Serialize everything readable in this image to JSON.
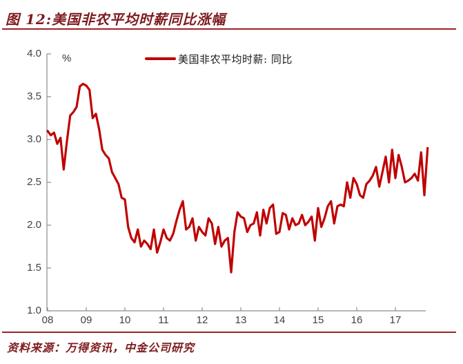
{
  "title": "图 12:美国非农平均时薪同比涨幅",
  "source": "资料来源：万得资讯，中金公司研究",
  "legend": {
    "label": "美国非农平均时薪: 同比"
  },
  "colors": {
    "line": "#C00000",
    "accent_text": "#7E1A1D",
    "divider": "#9E2124",
    "axis": "#8C8C8C",
    "tick_label": "#404040"
  },
  "chart_data": {
    "type": "line",
    "title": "图 12:美国非农平均时薪同比涨幅",
    "ylabel": "%",
    "ylim": [
      1.0,
      4.0
    ],
    "y_tick_step": 0.5,
    "y_tick_labels": [
      "4.0",
      "3.5",
      "3.0",
      "2.5",
      "2.0",
      "1.5",
      "1.0"
    ],
    "x_tick_labels": [
      "08",
      "09",
      "10",
      "11",
      "12",
      "13",
      "14",
      "15",
      "16",
      "17"
    ],
    "grid": false,
    "legend_position": "top-center",
    "series": [
      {
        "name": "美国非农平均时薪: 同比",
        "unit": "%",
        "frequency": "monthly",
        "start": "2008-01",
        "end": "2017-11",
        "values": [
          3.1,
          3.05,
          3.08,
          2.95,
          3.02,
          2.65,
          2.98,
          3.28,
          3.32,
          3.38,
          3.62,
          3.65,
          3.63,
          3.58,
          3.25,
          3.3,
          3.12,
          2.88,
          2.82,
          2.78,
          2.62,
          2.55,
          2.48,
          2.32,
          2.3,
          1.98,
          1.85,
          1.8,
          1.95,
          1.75,
          1.82,
          1.78,
          1.72,
          1.95,
          1.68,
          1.8,
          1.95,
          1.85,
          1.82,
          1.9,
          2.05,
          2.18,
          2.28,
          1.95,
          1.98,
          2.08,
          1.82,
          1.98,
          1.92,
          1.88,
          2.08,
          2.02,
          1.78,
          1.98,
          1.75,
          1.82,
          1.85,
          1.45,
          1.92,
          2.15,
          2.1,
          2.08,
          1.92,
          2.0,
          2.02,
          2.15,
          1.88,
          2.18,
          2.02,
          2.2,
          2.24,
          1.9,
          1.92,
          2.14,
          2.12,
          1.95,
          2.08,
          2.0,
          2.02,
          2.12,
          2.0,
          2.04,
          2.1,
          1.82,
          2.2,
          1.98,
          2.08,
          2.22,
          2.28,
          2.02,
          2.22,
          2.24,
          2.22,
          2.5,
          2.32,
          2.55,
          2.48,
          2.35,
          2.32,
          2.48,
          2.52,
          2.58,
          2.68,
          2.45,
          2.62,
          2.8,
          2.5,
          2.88,
          2.55,
          2.82,
          2.68,
          2.5,
          2.52,
          2.55,
          2.6,
          2.52,
          2.85,
          2.35,
          2.9
        ]
      }
    ]
  }
}
